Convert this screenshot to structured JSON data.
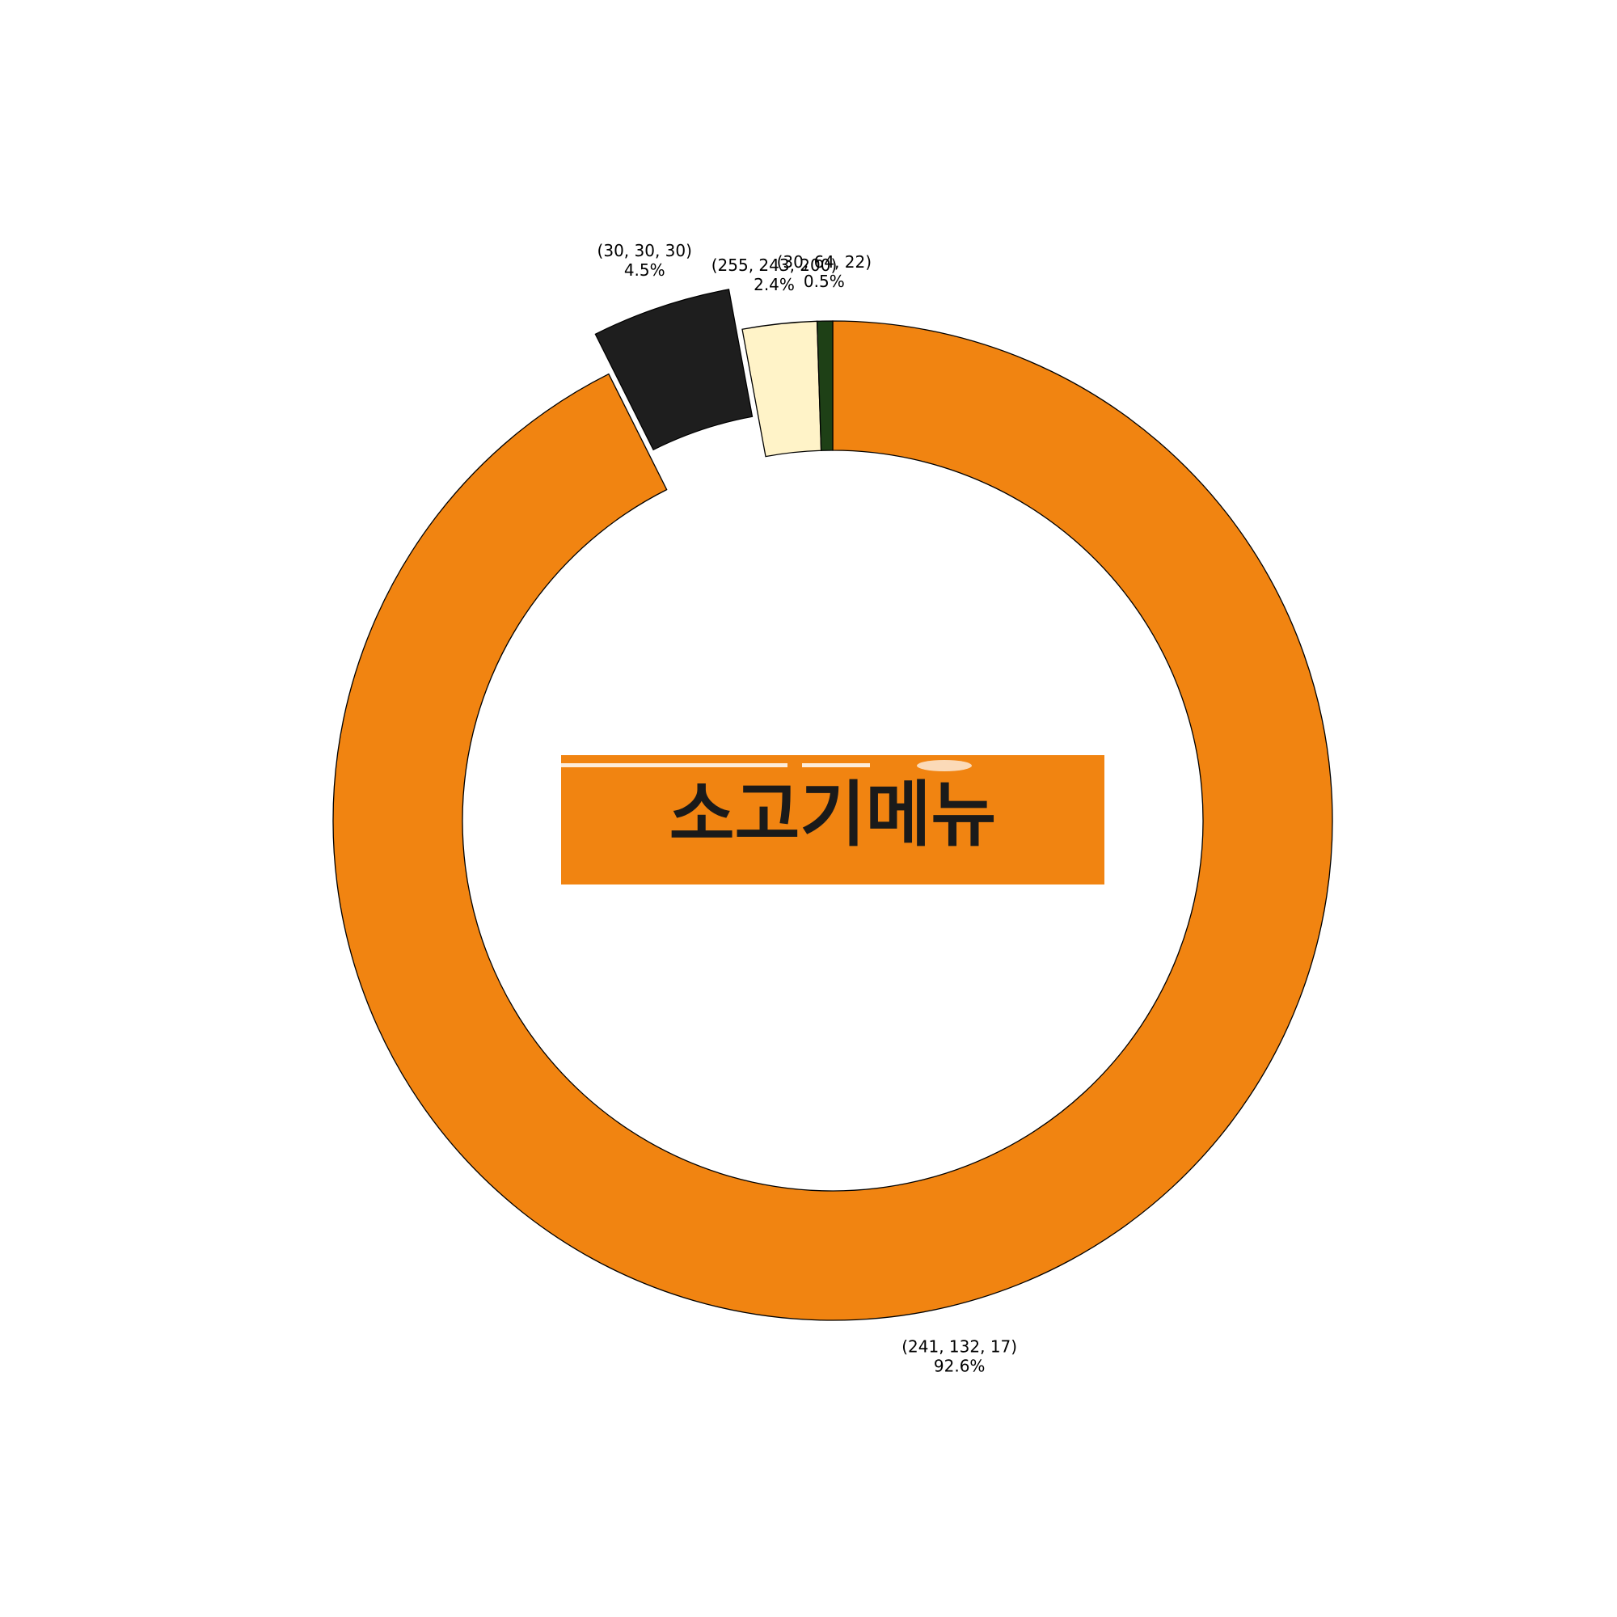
{
  "chart_data": {
    "type": "pie",
    "variant": "donut",
    "title": "",
    "start_angle_deg": 90,
    "direction": "clockwise",
    "slices": [
      {
        "label": "(241, 132, 17)",
        "pct_text": "92.6%",
        "value": 92.6,
        "color": "#F18411",
        "exploded": false
      },
      {
        "label": "(30, 30, 30)",
        "pct_text": "4.5%",
        "value": 4.5,
        "color": "#1E1E1E",
        "exploded": true
      },
      {
        "label": "(255, 243, 200)",
        "pct_text": "2.4%",
        "value": 2.4,
        "color": "#FFF3C8",
        "exploded": false
      },
      {
        "label": "(30, 64, 22)",
        "pct_text": "0.5%",
        "value": 0.5,
        "color": "#1E4016",
        "exploded": false
      }
    ]
  },
  "center_image": {
    "text": "소고기메뉴",
    "background_color": "#F18411",
    "text_color": "#1A1A1A"
  }
}
